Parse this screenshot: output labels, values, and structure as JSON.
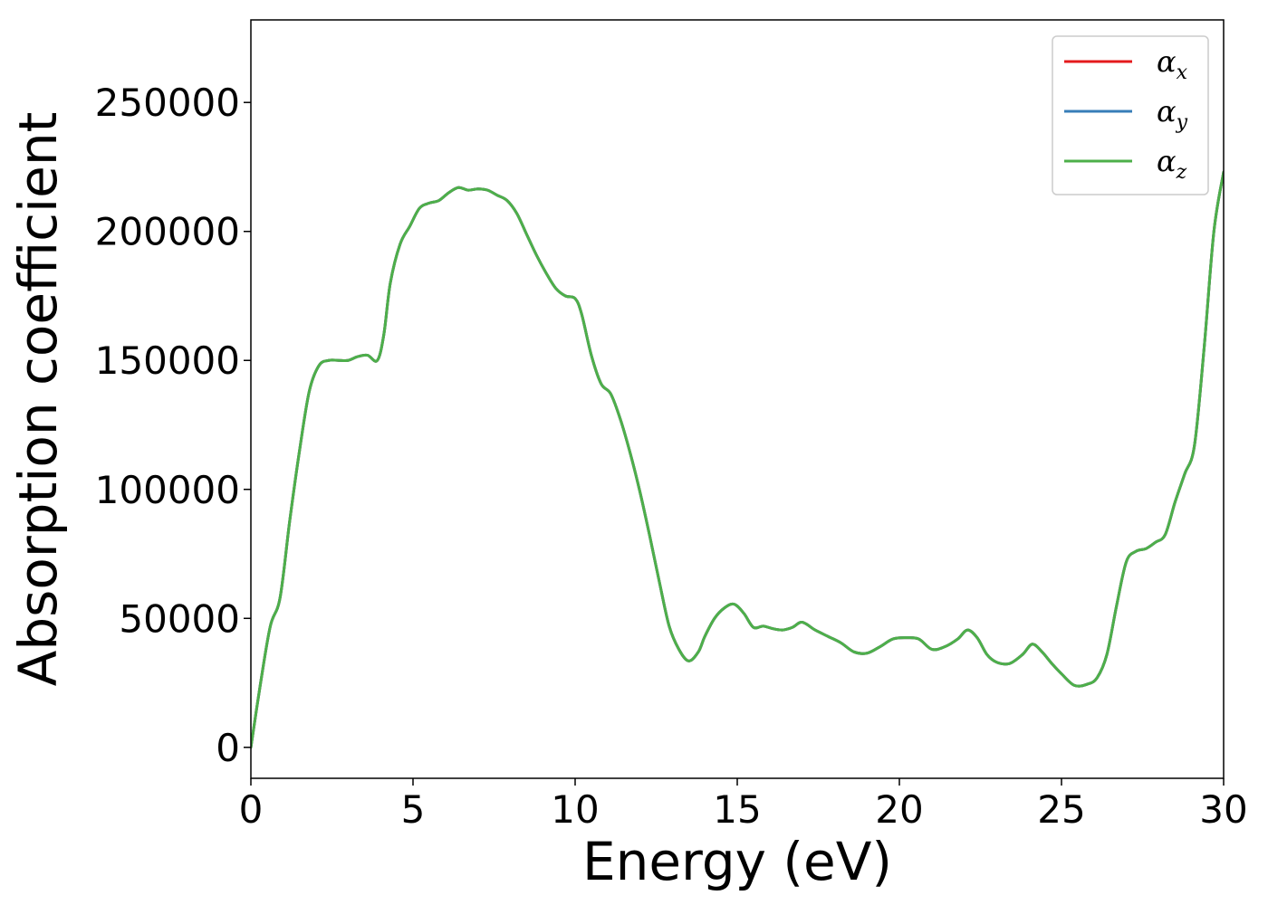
{
  "chart_data": {
    "type": "line",
    "title": "",
    "xlabel": "Energy (eV)",
    "ylabel": "Absorption coefficient",
    "xlim": [
      0,
      30
    ],
    "ylim": [
      -12000,
      282000
    ],
    "x_ticks": [
      0,
      5,
      10,
      15,
      20,
      25,
      30
    ],
    "x_tick_labels": [
      "0",
      "5",
      "10",
      "15",
      "20",
      "25",
      "30"
    ],
    "y_ticks": [
      0,
      50000,
      100000,
      150000,
      200000,
      250000
    ],
    "y_tick_labels": [
      "0",
      "50000",
      "100000",
      "150000",
      "200000",
      "250000"
    ],
    "grid": false,
    "legend_position": "top-right",
    "x": [
      0,
      0.3,
      0.6,
      0.9,
      1.2,
      1.5,
      1.8,
      2.1,
      2.4,
      2.7,
      3.0,
      3.3,
      3.6,
      3.9,
      4.1,
      4.3,
      4.6,
      4.9,
      5.2,
      5.5,
      5.8,
      6.1,
      6.4,
      6.7,
      7.0,
      7.3,
      7.6,
      7.9,
      8.2,
      8.5,
      8.8,
      9.1,
      9.4,
      9.7,
      10.0,
      10.2,
      10.5,
      10.8,
      11.1,
      11.4,
      11.7,
      12.0,
      12.3,
      12.6,
      12.9,
      13.2,
      13.5,
      13.8,
      14.0,
      14.3,
      14.6,
      14.9,
      15.2,
      15.5,
      15.8,
      16.1,
      16.4,
      16.7,
      17.0,
      17.4,
      17.8,
      18.2,
      18.6,
      19.0,
      19.4,
      19.8,
      20.2,
      20.6,
      21.0,
      21.4,
      21.8,
      22.1,
      22.4,
      22.7,
      23.0,
      23.4,
      23.8,
      24.1,
      24.4,
      24.7,
      25.0,
      25.4,
      25.8,
      26.1,
      26.4,
      26.7,
      27.0,
      27.3,
      27.6,
      27.9,
      28.2,
      28.5,
      28.8,
      29.1,
      29.4,
      29.7,
      30.0
    ],
    "series": [
      {
        "name": "αx",
        "name_base": "α",
        "name_sub": "x",
        "color": "#e41a1c",
        "values": [
          0,
          25000,
          47000,
          58000,
          88000,
          115000,
          138000,
          148000,
          150000,
          150000,
          150000,
          151500,
          152000,
          150000,
          160000,
          180000,
          195000,
          202000,
          209000,
          211000,
          212000,
          215000,
          217000,
          216000,
          216500,
          216000,
          214000,
          212000,
          207000,
          199000,
          191000,
          184000,
          178000,
          175000,
          174000,
          168000,
          152000,
          141000,
          137000,
          127000,
          114000,
          99000,
          82000,
          64000,
          47000,
          38000,
          33500,
          37000,
          43000,
          50000,
          54000,
          55500,
          52000,
          46500,
          47000,
          46000,
          45500,
          46500,
          48500,
          45500,
          43000,
          40500,
          37000,
          36500,
          39000,
          42000,
          42500,
          42000,
          38000,
          39000,
          42000,
          45500,
          42500,
          36000,
          33000,
          32500,
          36000,
          40000,
          37000,
          32500,
          28500,
          24000,
          24500,
          27000,
          36000,
          55000,
          72000,
          76000,
          77000,
          79500,
          82500,
          95000,
          106000,
          117000,
          155000,
          200000,
          223000
        ]
      },
      {
        "name": "αy",
        "name_base": "α",
        "name_sub": "y",
        "color": "#377eb8",
        "values": [
          0,
          25000,
          47000,
          58000,
          88000,
          115000,
          138000,
          148000,
          150000,
          150000,
          150000,
          151500,
          152000,
          150000,
          160000,
          180000,
          195000,
          202000,
          209000,
          211000,
          212000,
          215000,
          217000,
          216000,
          216500,
          216000,
          214000,
          212000,
          207000,
          199000,
          191000,
          184000,
          178000,
          175000,
          174000,
          168000,
          152000,
          141000,
          137000,
          127000,
          114000,
          99000,
          82000,
          64000,
          47000,
          38000,
          33500,
          37000,
          43000,
          50000,
          54000,
          55500,
          52000,
          46500,
          47000,
          46000,
          45500,
          46500,
          48500,
          45500,
          43000,
          40500,
          37000,
          36500,
          39000,
          42000,
          42500,
          42000,
          38000,
          39000,
          42000,
          45500,
          42500,
          36000,
          33000,
          32500,
          36000,
          40000,
          37000,
          32500,
          28500,
          24000,
          24500,
          27000,
          36000,
          55000,
          72000,
          76000,
          77000,
          79500,
          82500,
          95000,
          106000,
          117000,
          155000,
          200000,
          223000
        ]
      },
      {
        "name": "αz",
        "name_base": "α",
        "name_sub": "z",
        "color": "#4daf4a",
        "values": [
          0,
          25000,
          47000,
          58000,
          88000,
          115000,
          138000,
          148000,
          150000,
          150000,
          150000,
          151500,
          152000,
          150000,
          160000,
          180000,
          195000,
          202000,
          209000,
          211000,
          212000,
          215000,
          217000,
          216000,
          216500,
          216000,
          214000,
          212000,
          207000,
          199000,
          191000,
          184000,
          178000,
          175000,
          174000,
          168000,
          152000,
          141000,
          137000,
          127000,
          114000,
          99000,
          82000,
          64000,
          47000,
          38000,
          33500,
          37000,
          43000,
          50000,
          54000,
          55500,
          52000,
          46500,
          47000,
          46000,
          45500,
          46500,
          48500,
          45500,
          43000,
          40500,
          37000,
          36500,
          39000,
          42000,
          42500,
          42000,
          38000,
          39000,
          42000,
          45500,
          42500,
          36000,
          33000,
          32500,
          36000,
          40000,
          37000,
          32500,
          28500,
          24000,
          24500,
          27000,
          36000,
          55000,
          72000,
          76000,
          77000,
          79500,
          82500,
          95000,
          106000,
          117000,
          155000,
          200000,
          223000
        ]
      }
    ]
  }
}
